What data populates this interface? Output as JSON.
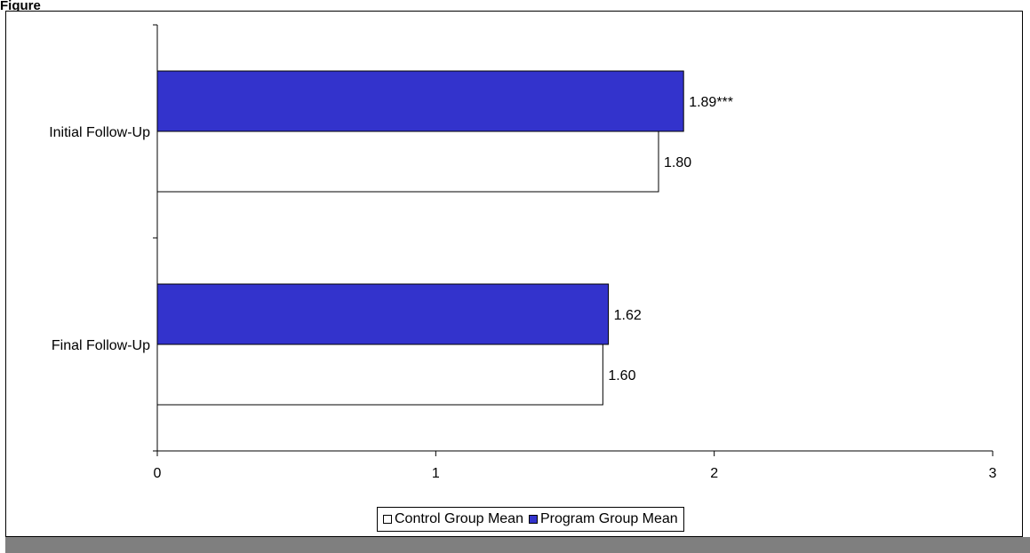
{
  "chart_data": {
    "type": "bar",
    "orientation": "horizontal",
    "title": "Figure",
    "categories": [
      "Initial Follow-Up",
      "Final Follow-Up"
    ],
    "series": [
      {
        "name": "Program Group Mean",
        "color": "#3333cc",
        "values": [
          1.89,
          1.62
        ],
        "labels": [
          "1.89***",
          "1.62"
        ]
      },
      {
        "name": "Control Group Mean",
        "color": "#ffffff",
        "values": [
          1.8,
          1.6
        ],
        "labels": [
          "1.80",
          "1.60"
        ]
      }
    ],
    "xlim": [
      0,
      3
    ],
    "x_ticks": [
      "0",
      "1",
      "2",
      "3"
    ],
    "xlabel": "",
    "ylabel": "",
    "grid": false,
    "legend_position": "bottom",
    "legend_order": [
      "Control Group Mean",
      "Program Group Mean"
    ]
  }
}
